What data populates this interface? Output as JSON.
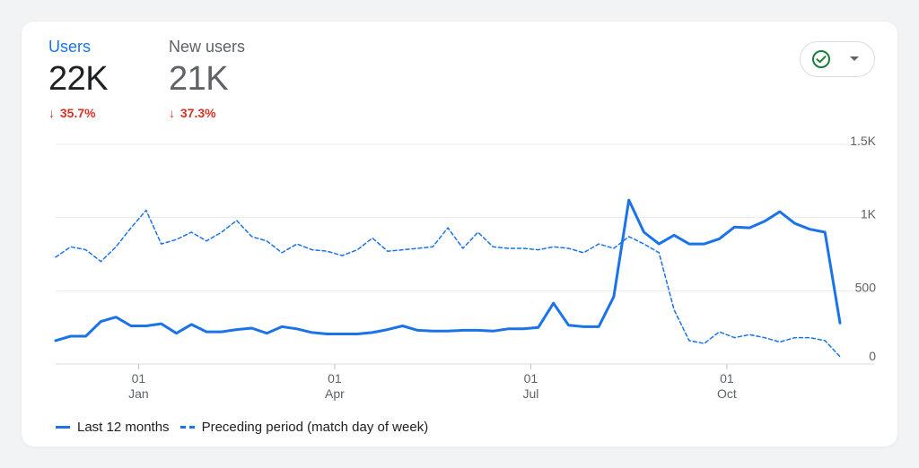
{
  "metrics": [
    {
      "label": "Users",
      "value": "22K",
      "change": "35.7%",
      "arrow": "↓"
    },
    {
      "label": "New users",
      "value": "21K",
      "change": "37.3%",
      "arrow": "↓"
    }
  ],
  "compare_button": {
    "icon": "check-circle-icon",
    "icon_color": "#188038"
  },
  "colors": {
    "accent": "#1a73e8",
    "negative": "#d93025"
  },
  "chart_data": {
    "type": "line",
    "title": "",
    "xlabel": "",
    "ylabel": "",
    "ylim": [
      0,
      1500
    ],
    "yticks": [
      "0",
      "500",
      "1K",
      "1.5K"
    ],
    "ytick_values": [
      0,
      500,
      1000,
      1500
    ],
    "grid": true,
    "legend_position": "bottom-left",
    "xticks": [
      {
        "day": "01",
        "month": "Jan",
        "week": 5.5
      },
      {
        "day": "01",
        "month": "Apr",
        "week": 18.5
      },
      {
        "day": "01",
        "month": "Jul",
        "week": 31.5
      },
      {
        "day": "01",
        "month": "Oct",
        "week": 44.5
      }
    ],
    "x": [
      0,
      1,
      2,
      3,
      4,
      5,
      6,
      7,
      8,
      9,
      10,
      11,
      12,
      13,
      14,
      15,
      16,
      17,
      18,
      19,
      20,
      21,
      22,
      23,
      24,
      25,
      26,
      27,
      28,
      29,
      30,
      31,
      32,
      33,
      34,
      35,
      36,
      37,
      38,
      39,
      40,
      41,
      42,
      43,
      44,
      45,
      46,
      47,
      48,
      49,
      50,
      51,
      52
    ],
    "series": [
      {
        "name": "Last 12 months",
        "style": "solid",
        "color": "#1a73e8",
        "values": [
          160,
          190,
          190,
          290,
          320,
          260,
          260,
          275,
          210,
          270,
          220,
          220,
          235,
          245,
          210,
          255,
          240,
          215,
          205,
          205,
          205,
          215,
          235,
          260,
          230,
          225,
          225,
          230,
          230,
          225,
          240,
          240,
          250,
          415,
          265,
          255,
          255,
          460,
          1120,
          900,
          820,
          880,
          820,
          820,
          855,
          935,
          930,
          975,
          1040,
          960,
          920,
          900,
          280
        ]
      },
      {
        "name": "Preceding period (match day of week)",
        "style": "dashed",
        "color": "#1a73e8",
        "values": [
          730,
          800,
          780,
          700,
          800,
          930,
          1050,
          820,
          850,
          900,
          840,
          900,
          980,
          870,
          840,
          760,
          820,
          780,
          770,
          740,
          780,
          860,
          770,
          780,
          790,
          800,
          930,
          790,
          900,
          800,
          790,
          790,
          780,
          800,
          790,
          760,
          820,
          790,
          870,
          820,
          760,
          370,
          160,
          140,
          220,
          180,
          200,
          180,
          150,
          180,
          180,
          160,
          50
        ]
      }
    ]
  }
}
